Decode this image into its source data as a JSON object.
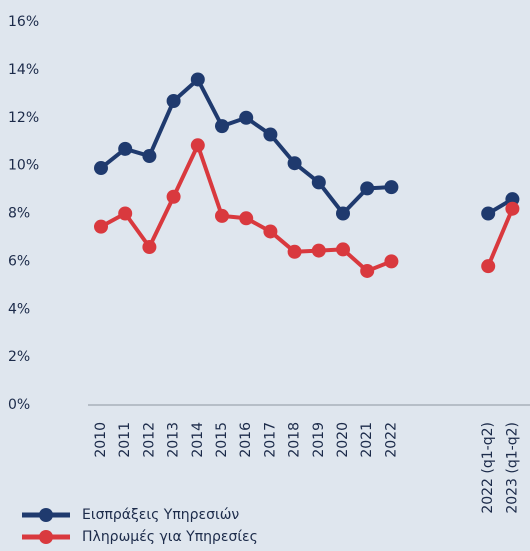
{
  "chart_data": {
    "type": "line",
    "categories": [
      "2010",
      "2011",
      "2012",
      "2013",
      "2014",
      "2015",
      "2016",
      "2017",
      "2018",
      "2019",
      "2020",
      "2021",
      "2022",
      null,
      null,
      null,
      "2022 (q1-q2)",
      "2023 (q1-q2)"
    ],
    "series": [
      {
        "name": "Εισπράξεις Υπηρεσιών",
        "color": "#1f3a6e",
        "values": [
          9.9,
          10.7,
          10.4,
          12.7,
          13.6,
          11.65,
          12.0,
          11.3,
          10.1,
          9.3,
          8.0,
          9.05,
          9.1,
          null,
          null,
          null,
          8.0,
          8.6
        ]
      },
      {
        "name": "Πληρωμές για Υπηρεσίες",
        "color": "#d9393e",
        "values": [
          7.45,
          8.0,
          6.6,
          8.7,
          10.85,
          7.9,
          7.8,
          7.25,
          6.4,
          6.45,
          6.5,
          5.6,
          6.0,
          null,
          null,
          null,
          5.8,
          8.2
        ]
      }
    ],
    "ylim": [
      0,
      16
    ],
    "yticks": [
      {
        "value": 0,
        "label": "0%"
      },
      {
        "value": 2,
        "label": "2%"
      },
      {
        "value": 4,
        "label": "4%"
      },
      {
        "value": 6,
        "label": "6%"
      },
      {
        "value": 8,
        "label": "8%"
      },
      {
        "value": 10,
        "label": "10%"
      },
      {
        "value": 12,
        "label": "12%"
      },
      {
        "value": 14,
        "label": "14%"
      },
      {
        "value": 16,
        "label": "16%"
      }
    ],
    "grid": false
  }
}
